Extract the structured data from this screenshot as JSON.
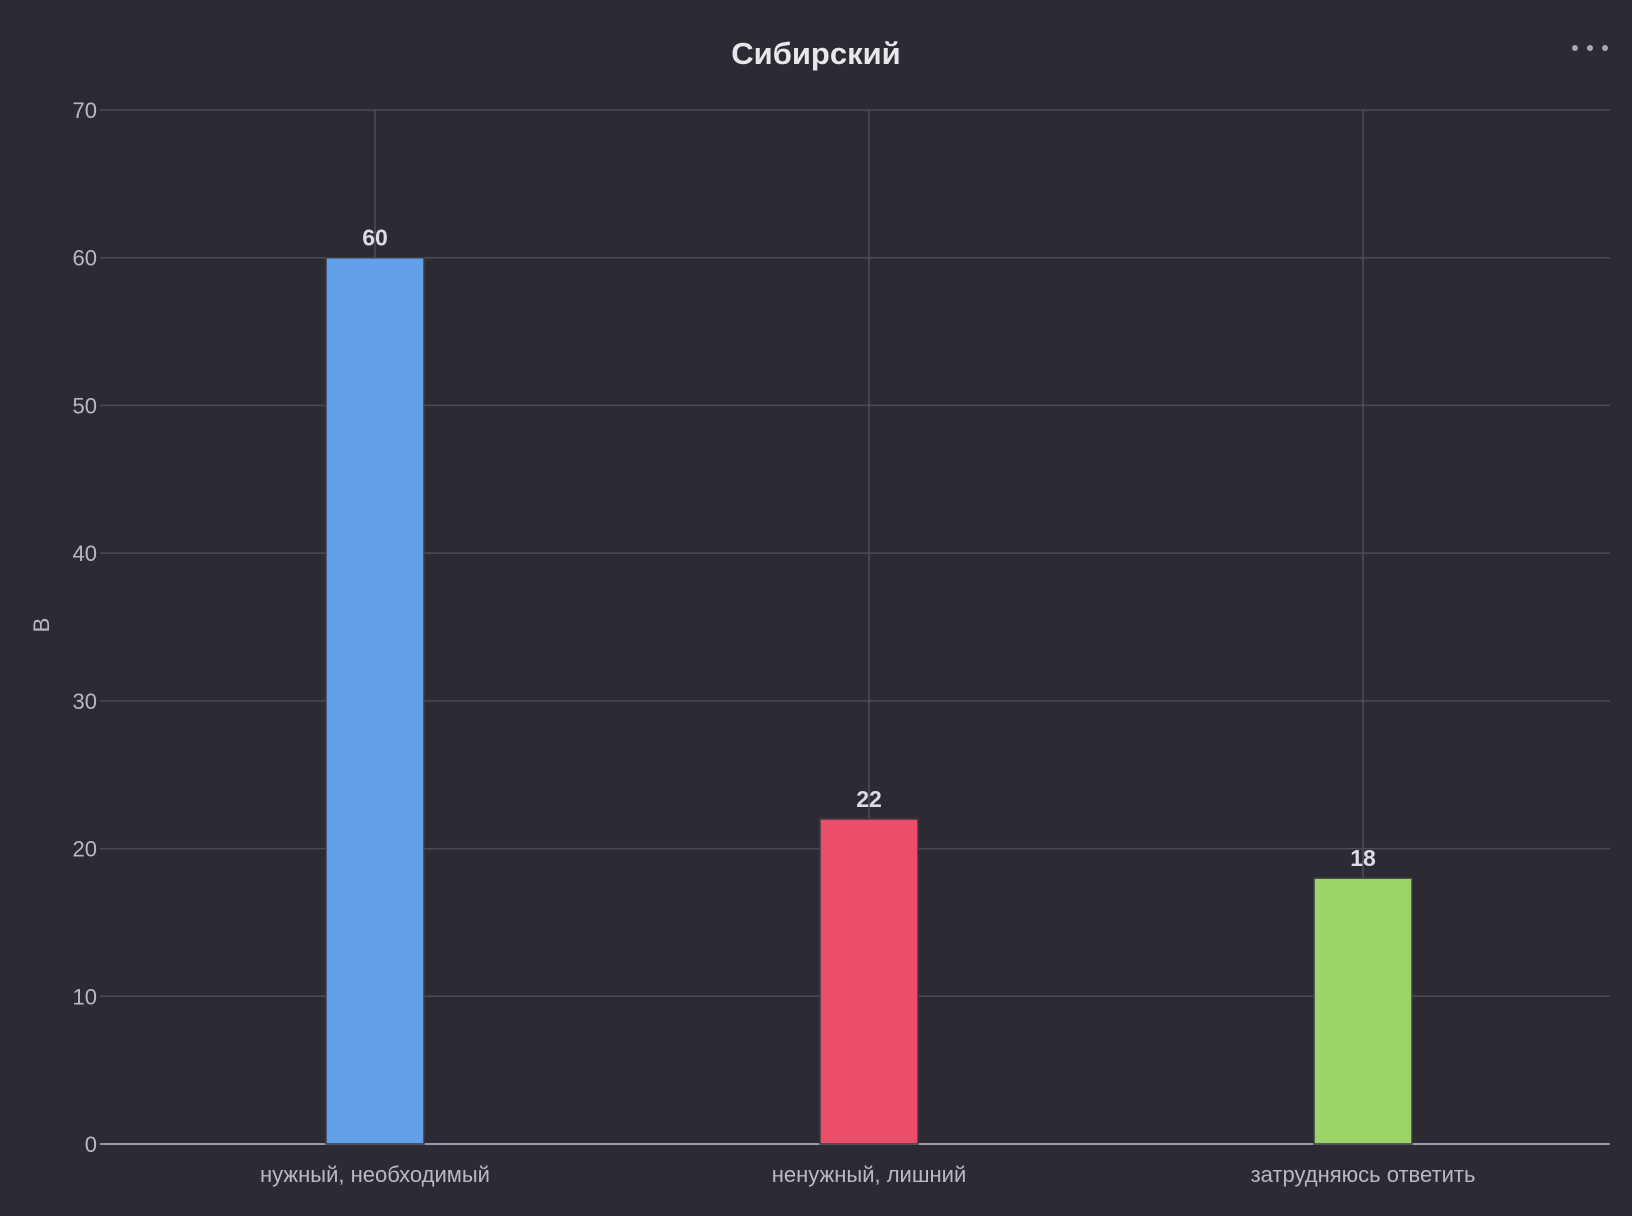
{
  "chart_data": {
    "type": "bar",
    "title": "Сибирский",
    "ylabel": "В",
    "xlabel": "",
    "categories": [
      "нужный, необходимый",
      "ненужный, лишний",
      "затрудняюсь ответить"
    ],
    "values": [
      60,
      22,
      18
    ],
    "colors": [
      "#62a0ea",
      "#ec4e6a",
      "#9bd468"
    ],
    "ylim": [
      0,
      70
    ],
    "yticks": [
      0,
      10,
      20,
      30,
      40,
      50,
      60,
      70
    ],
    "grid": true,
    "data_labels": true
  },
  "toolbar": {
    "menu_icon": "more-horizontal-icon"
  }
}
